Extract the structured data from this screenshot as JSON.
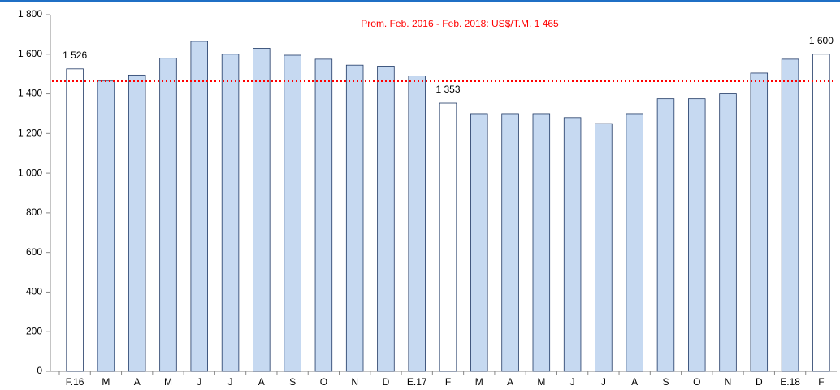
{
  "chart_data": {
    "type": "bar",
    "annotation": "Prom. Feb. 2016 - Feb. 2018: US$/T.M. 1 465",
    "reference_value": 1465,
    "reference_color": "#ff0000",
    "categories": [
      "F.16",
      "M",
      "A",
      "M",
      "J",
      "J",
      "A",
      "S",
      "O",
      "N",
      "D",
      "E.17",
      "F",
      "M",
      "A",
      "M",
      "J",
      "J",
      "A",
      "S",
      "O",
      "N",
      "D",
      "E.18",
      "F"
    ],
    "values": [
      1526,
      1465,
      1495,
      1580,
      1665,
      1600,
      1630,
      1595,
      1575,
      1545,
      1540,
      1490,
      1353,
      1300,
      1300,
      1300,
      1280,
      1250,
      1300,
      1375,
      1375,
      1400,
      1505,
      1575,
      1600
    ],
    "value_labels": [
      "1 526",
      null,
      null,
      null,
      null,
      null,
      null,
      null,
      null,
      null,
      null,
      null,
      "1 353",
      null,
      null,
      null,
      null,
      null,
      null,
      null,
      null,
      null,
      null,
      null,
      "1 600"
    ],
    "colors": [
      "#ffffff",
      "#c6d9f1",
      "#c6d9f1",
      "#c6d9f1",
      "#c6d9f1",
      "#c6d9f1",
      "#c6d9f1",
      "#c6d9f1",
      "#c6d9f1",
      "#c6d9f1",
      "#c6d9f1",
      "#c6d9f1",
      "#ffffff",
      "#c6d9f1",
      "#c6d9f1",
      "#c6d9f1",
      "#c6d9f1",
      "#c6d9f1",
      "#c6d9f1",
      "#c6d9f1",
      "#c6d9f1",
      "#c6d9f1",
      "#c6d9f1",
      "#c6d9f1",
      "#ffffff"
    ],
    "ylim": [
      0,
      1800
    ],
    "yticks": [
      0,
      200,
      400,
      600,
      800,
      {
        "value": 1000,
        "label": "1 000"
      },
      {
        "value": 1200,
        "label": "1 200"
      },
      {
        "value": 1400,
        "label": "1 400"
      },
      {
        "value": 1600,
        "label": "1 600"
      },
      {
        "value": 1800,
        "label": "1 800"
      }
    ],
    "grid": false
  }
}
